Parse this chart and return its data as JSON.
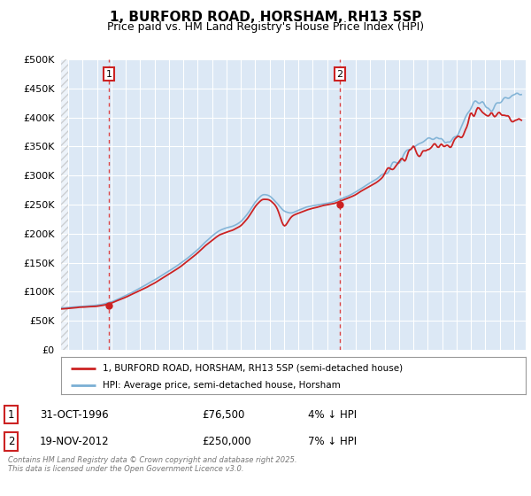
{
  "title": "1, BURFORD ROAD, HORSHAM, RH13 5SP",
  "subtitle": "Price paid vs. HM Land Registry's House Price Index (HPI)",
  "legend_line1": "1, BURFORD ROAD, HORSHAM, RH13 5SP (semi-detached house)",
  "legend_line2": "HPI: Average price, semi-detached house, Horsham",
  "annotation1_label": "1",
  "annotation1_date": "31-OCT-1996",
  "annotation1_price": "£76,500",
  "annotation1_hpi": "4% ↓ HPI",
  "annotation1_year": 1996.83,
  "annotation1_value": 76500,
  "annotation2_label": "2",
  "annotation2_date": "19-NOV-2012",
  "annotation2_price": "£250,000",
  "annotation2_hpi": "7% ↓ HPI",
  "annotation2_year": 2012.88,
  "annotation2_value": 250000,
  "ylim_min": 0,
  "ylim_max": 500000,
  "ytick_values": [
    0,
    50000,
    100000,
    150000,
    200000,
    250000,
    300000,
    350000,
    400000,
    450000,
    500000
  ],
  "background_color": "#ffffff",
  "plot_bg_color": "#dce8f5",
  "grid_color": "#ffffff",
  "hpi_line_color": "#7aafd4",
  "price_line_color": "#cc2222",
  "annotation_line_color": "#dd3333",
  "title_fontsize": 11,
  "subtitle_fontsize": 9,
  "copyright_text": "Contains HM Land Registry data © Crown copyright and database right 2025.\nThis data is licensed under the Open Government Licence v3.0.",
  "xstart": 1993.5,
  "xend": 2025.8,
  "hpi_points_t": [
    1993.5,
    1994.0,
    1994.5,
    1995.0,
    1995.5,
    1996.0,
    1996.5,
    1997.0,
    1997.5,
    1998.0,
    1998.5,
    1999.0,
    1999.5,
    2000.0,
    2000.5,
    2001.0,
    2001.5,
    2002.0,
    2002.5,
    2003.0,
    2003.5,
    2004.0,
    2004.5,
    2005.0,
    2005.5,
    2006.0,
    2006.5,
    2007.0,
    2007.5,
    2008.0,
    2008.5,
    2009.0,
    2009.5,
    2010.0,
    2010.5,
    2011.0,
    2011.5,
    2012.0,
    2012.5,
    2013.0,
    2013.5,
    2014.0,
    2014.5,
    2015.0,
    2015.5,
    2016.0,
    2016.5,
    2017.0,
    2017.5,
    2018.0,
    2018.5,
    2019.0,
    2019.5,
    2020.0,
    2020.5,
    2021.0,
    2021.5,
    2022.0,
    2022.5,
    2023.0,
    2023.5,
    2024.0,
    2024.5,
    2025.0,
    2025.5
  ],
  "hpi_points_v": [
    72000,
    73000,
    74000,
    75000,
    76000,
    77000,
    79000,
    82000,
    87000,
    93000,
    99000,
    106000,
    113000,
    120000,
    128000,
    136000,
    144000,
    153000,
    163000,
    173000,
    184000,
    195000,
    205000,
    210000,
    213000,
    220000,
    235000,
    255000,
    268000,
    265000,
    252000,
    238000,
    235000,
    240000,
    245000,
    248000,
    250000,
    252000,
    255000,
    260000,
    265000,
    272000,
    280000,
    288000,
    295000,
    305000,
    315000,
    325000,
    338000,
    348000,
    355000,
    360000,
    362000,
    358000,
    355000,
    370000,
    390000,
    415000,
    430000,
    420000,
    415000,
    420000,
    435000,
    445000,
    450000
  ],
  "price_points_t": [
    1993.5,
    1994.0,
    1994.5,
    1995.0,
    1995.5,
    1996.0,
    1996.5,
    1997.0,
    1997.5,
    1998.0,
    1998.5,
    1999.0,
    1999.5,
    2000.0,
    2000.5,
    2001.0,
    2001.5,
    2002.0,
    2002.5,
    2003.0,
    2003.5,
    2004.0,
    2004.5,
    2005.0,
    2005.5,
    2006.0,
    2006.5,
    2007.0,
    2007.5,
    2008.0,
    2008.5,
    2009.0,
    2009.5,
    2010.0,
    2010.5,
    2011.0,
    2011.5,
    2012.0,
    2012.5,
    2013.0,
    2013.5,
    2014.0,
    2014.5,
    2015.0,
    2015.5,
    2016.0,
    2016.5,
    2017.0,
    2017.5,
    2018.0,
    2018.5,
    2019.0,
    2019.5,
    2020.0,
    2020.5,
    2021.0,
    2021.5,
    2022.0,
    2022.5,
    2023.0,
    2023.5,
    2024.0,
    2024.5,
    2025.0,
    2025.5
  ],
  "price_points_v": [
    70000,
    71000,
    72000,
    73000,
    74000,
    75000,
    77000,
    80000,
    85000,
    90000,
    96000,
    102000,
    108000,
    115000,
    123000,
    131000,
    139000,
    148000,
    158000,
    168000,
    178000,
    188000,
    198000,
    203000,
    207000,
    214000,
    228000,
    248000,
    260000,
    258000,
    245000,
    210000,
    228000,
    235000,
    240000,
    244000,
    247000,
    250000,
    252000,
    257000,
    262000,
    268000,
    276000,
    283000,
    290000,
    299000,
    308000,
    318000,
    330000,
    340000,
    347000,
    352000,
    354000,
    350000,
    348000,
    363000,
    382000,
    405000,
    418000,
    408000,
    402000,
    408000,
    395000,
    400000,
    400000
  ]
}
